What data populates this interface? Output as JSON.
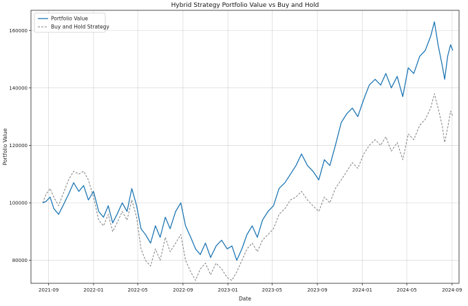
{
  "chart_data": {
    "type": "line",
    "title": "Hybrid Strategy Portfolio Value vs Buy and Hold",
    "xlabel": "Date",
    "ylabel": "Portfolio Value",
    "xlim": [
      "2021-07-15",
      "2024-09-20"
    ],
    "ylim": [
      72000,
      167000
    ],
    "x_ticks": [
      "2021-09",
      "2022-01",
      "2022-05",
      "2022-09",
      "2023-01",
      "2023-05",
      "2023-09",
      "2024-01",
      "2024-05",
      "2024-09"
    ],
    "y_ticks": [
      80000,
      100000,
      120000,
      140000,
      160000
    ],
    "y_tick_labels": [
      "80000",
      "100000",
      "120000",
      "140000",
      "160000"
    ],
    "grid": true,
    "legend": "top-left",
    "colors": {
      "portfolio": "#1f77b4",
      "buyhold": "#7f7f7f"
    },
    "series": [
      {
        "name": "Portfolio Value",
        "style": "solid",
        "x": [
          "2021-08-16",
          "2021-08-25",
          "2021-09-05",
          "2021-09-15",
          "2021-09-28",
          "2021-10-10",
          "2021-10-25",
          "2021-11-08",
          "2021-11-22",
          "2021-12-05",
          "2021-12-18",
          "2022-01-01",
          "2022-01-15",
          "2022-01-28",
          "2022-02-10",
          "2022-02-22",
          "2022-03-06",
          "2022-03-20",
          "2022-04-02",
          "2022-04-15",
          "2022-04-28",
          "2022-05-10",
          "2022-05-22",
          "2022-06-05",
          "2022-06-18",
          "2022-07-01",
          "2022-07-15",
          "2022-07-28",
          "2022-08-12",
          "2022-08-26",
          "2022-09-08",
          "2022-09-22",
          "2022-10-05",
          "2022-10-18",
          "2022-11-01",
          "2022-11-15",
          "2022-11-30",
          "2022-12-15",
          "2022-12-30",
          "2023-01-12",
          "2023-01-25",
          "2023-02-08",
          "2023-02-22",
          "2023-03-08",
          "2023-03-22",
          "2023-04-05",
          "2023-04-20",
          "2023-05-05",
          "2023-05-20",
          "2023-06-05",
          "2023-06-20",
          "2023-07-05",
          "2023-07-20",
          "2023-08-05",
          "2023-08-20",
          "2023-09-05",
          "2023-09-20",
          "2023-10-05",
          "2023-10-20",
          "2023-11-05",
          "2023-11-20",
          "2023-12-05",
          "2023-12-20",
          "2024-01-05",
          "2024-01-20",
          "2024-02-05",
          "2024-02-20",
          "2024-03-05",
          "2024-03-20",
          "2024-04-05",
          "2024-04-20",
          "2024-05-05",
          "2024-05-20",
          "2024-06-05",
          "2024-06-20",
          "2024-07-05",
          "2024-07-15",
          "2024-07-25",
          "2024-08-05",
          "2024-08-12",
          "2024-08-20",
          "2024-08-28",
          "2024-09-03"
        ],
        "y": [
          100000,
          100500,
          102000,
          98000,
          96000,
          99000,
          103000,
          107000,
          104000,
          106000,
          101000,
          104000,
          97000,
          95000,
          99000,
          93000,
          96000,
          100000,
          97000,
          105000,
          99000,
          91000,
          89000,
          86000,
          92000,
          88000,
          95000,
          91000,
          97000,
          100000,
          92000,
          88000,
          84000,
          82000,
          86000,
          81000,
          85000,
          87000,
          84000,
          85000,
          80000,
          84000,
          89000,
          92000,
          88000,
          94000,
          97000,
          99000,
          105000,
          107000,
          110000,
          113000,
          117000,
          113000,
          111000,
          108000,
          115000,
          113000,
          120000,
          128000,
          131000,
          133000,
          130000,
          136000,
          141000,
          143000,
          141000,
          145000,
          140000,
          144000,
          137000,
          147000,
          145000,
          151000,
          153000,
          158000,
          163000,
          155000,
          148000,
          143000,
          151000,
          155000,
          153000
        ]
      },
      {
        "name": "Buy and Hold Strategy",
        "style": "dashed",
        "x": [
          "2021-08-16",
          "2021-08-25",
          "2021-09-05",
          "2021-09-15",
          "2021-09-28",
          "2021-10-10",
          "2021-10-25",
          "2021-11-08",
          "2021-11-22",
          "2021-12-05",
          "2021-12-18",
          "2022-01-01",
          "2022-01-15",
          "2022-01-28",
          "2022-02-10",
          "2022-02-22",
          "2022-03-06",
          "2022-03-20",
          "2022-04-02",
          "2022-04-15",
          "2022-04-28",
          "2022-05-10",
          "2022-05-22",
          "2022-06-05",
          "2022-06-18",
          "2022-07-01",
          "2022-07-15",
          "2022-07-28",
          "2022-08-12",
          "2022-08-26",
          "2022-09-08",
          "2022-09-22",
          "2022-10-05",
          "2022-10-18",
          "2022-11-01",
          "2022-11-15",
          "2022-11-30",
          "2022-12-15",
          "2022-12-30",
          "2023-01-12",
          "2023-01-25",
          "2023-02-08",
          "2023-02-22",
          "2023-03-08",
          "2023-03-22",
          "2023-04-05",
          "2023-04-20",
          "2023-05-05",
          "2023-05-20",
          "2023-06-05",
          "2023-06-20",
          "2023-07-05",
          "2023-07-20",
          "2023-08-05",
          "2023-08-20",
          "2023-09-05",
          "2023-09-20",
          "2023-10-05",
          "2023-10-20",
          "2023-11-05",
          "2023-11-20",
          "2023-12-05",
          "2023-12-20",
          "2024-01-05",
          "2024-01-20",
          "2024-02-05",
          "2024-02-20",
          "2024-03-05",
          "2024-03-20",
          "2024-04-05",
          "2024-04-20",
          "2024-05-05",
          "2024-05-20",
          "2024-06-05",
          "2024-06-20",
          "2024-07-05",
          "2024-07-15",
          "2024-07-25",
          "2024-08-05",
          "2024-08-12",
          "2024-08-20",
          "2024-08-28",
          "2024-09-03"
        ],
        "y": [
          100000,
          103000,
          105000,
          102000,
          99000,
          103000,
          108000,
          111000,
          110000,
          111000,
          108000,
          102000,
          94000,
          92000,
          96000,
          90000,
          93000,
          97000,
          94000,
          101000,
          95000,
          84000,
          80000,
          78000,
          84000,
          80000,
          88000,
          83000,
          86000,
          89000,
          80000,
          76000,
          73000,
          77000,
          79000,
          75000,
          79000,
          77000,
          74000,
          73000,
          76000,
          80000,
          84000,
          86000,
          83000,
          87000,
          89000,
          91000,
          96000,
          98000,
          101000,
          102000,
          104000,
          101000,
          99000,
          97000,
          102000,
          100000,
          105000,
          108000,
          111000,
          114000,
          112000,
          117000,
          120000,
          122000,
          120000,
          123000,
          118000,
          121000,
          115000,
          124000,
          122000,
          127000,
          129000,
          133000,
          138000,
          133000,
          127000,
          121000,
          126000,
          132000,
          130000
        ]
      }
    ]
  }
}
